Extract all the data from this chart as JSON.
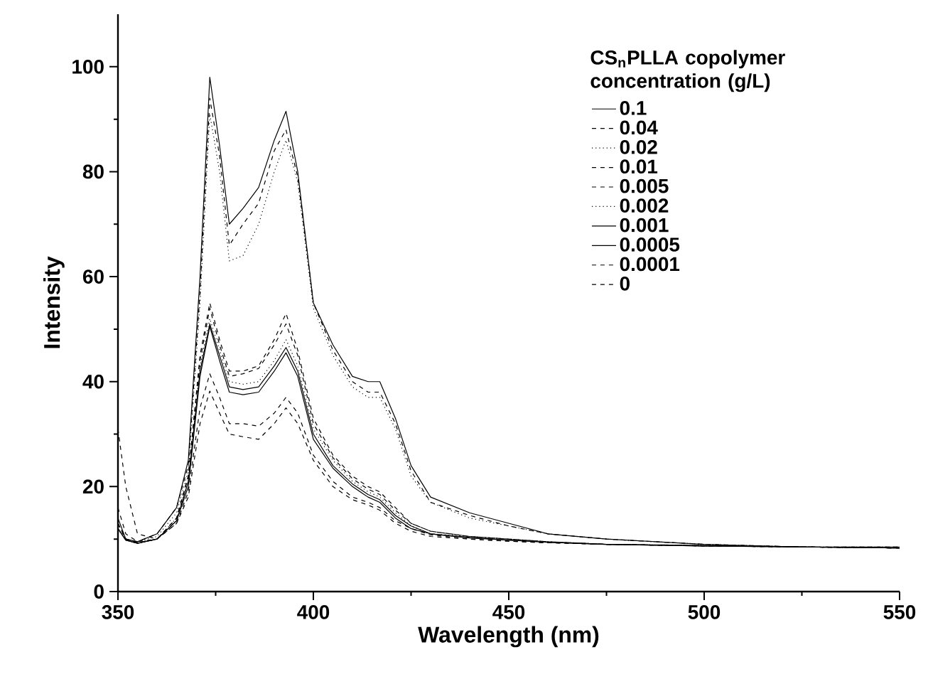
{
  "chart_data": {
    "type": "line",
    "xlabel": "Wavelength (nm)",
    "ylabel": "Intensity",
    "legend_title": "CS$_{n}$PLLA copolymer concentration (g/L)",
    "legend": "top right",
    "xlim": [
      350,
      550
    ],
    "ylim": [
      0,
      110
    ],
    "xticks": [
      350,
      400,
      450,
      500,
      550
    ],
    "yticks": [
      0,
      20,
      40,
      60,
      80,
      100
    ],
    "x": [
      350,
      352,
      355,
      360,
      365,
      368,
      371,
      373.5,
      376,
      378.5,
      382,
      386,
      390,
      393,
      396,
      400,
      405,
      410,
      414,
      417,
      421,
      425,
      430,
      440,
      450,
      460,
      475,
      500,
      525,
      550
    ],
    "series": [
      {
        "name": "0.1",
        "color": "#000000",
        "line_style": "solid",
        "values": [
          14,
          10,
          9.5,
          11,
          16,
          25,
          60,
          98,
          85,
          70,
          73,
          77,
          86,
          91.5,
          80,
          55,
          47,
          41,
          40,
          40,
          33,
          24,
          18,
          15,
          13,
          11,
          10,
          9,
          8.5,
          8.5
        ]
      },
      {
        "name": "0.04",
        "color": "#000000",
        "line_style": "dashed",
        "values": [
          13,
          10,
          9.5,
          11,
          16,
          24,
          57,
          94,
          83,
          66,
          70,
          74,
          84,
          88,
          79,
          55,
          46,
          40,
          38,
          38,
          32,
          23,
          17,
          14.5,
          12.5,
          11,
          10,
          9,
          8.5,
          8.5
        ]
      },
      {
        "name": "0.02",
        "color": "#000000",
        "line_style": "dotted",
        "values": [
          13,
          10,
          9.5,
          10.5,
          15,
          23,
          55,
          91,
          80,
          63,
          64,
          70,
          80,
          86,
          78,
          54,
          45,
          39,
          37,
          37,
          31,
          22,
          17,
          14,
          12.5,
          11,
          10,
          9,
          8.5,
          8.5
        ]
      },
      {
        "name": "0.01",
        "color": "#000000",
        "line_style": "dashed",
        "values": [
          13,
          10,
          9.3,
          10,
          14,
          22,
          45,
          55,
          48,
          42,
          42,
          43,
          48,
          53,
          46,
          33,
          26,
          22,
          20,
          19,
          16,
          13,
          11.5,
          10.5,
          10,
          9.5,
          9,
          8.8,
          8.5,
          8.3
        ]
      },
      {
        "name": "0.005",
        "color": "#000000",
        "line_style": "dashed",
        "values": [
          13,
          10,
          9.3,
          10,
          14,
          22,
          44,
          54,
          47,
          41,
          41.5,
          42.5,
          47,
          51,
          45,
          32,
          25.5,
          21.5,
          19.5,
          18.5,
          15.5,
          13,
          11.5,
          10.5,
          10,
          9.5,
          9,
          8.8,
          8.5,
          8.3
        ]
      },
      {
        "name": "0.002",
        "color": "#000000",
        "line_style": "dotted",
        "values": [
          12,
          9.8,
          9.2,
          10,
          14,
          21,
          43,
          52,
          46,
          40,
          39.5,
          40,
          44,
          48,
          43,
          31,
          25,
          21,
          19,
          18,
          15,
          12.5,
          11,
          10.5,
          10,
          9.5,
          9,
          8.7,
          8.5,
          8.3
        ]
      },
      {
        "name": "0.001",
        "color": "#000000",
        "line_style": "solid",
        "values": [
          12,
          9.8,
          9.2,
          10,
          13.5,
          21,
          42,
          51,
          45,
          39,
          38.5,
          39,
          43,
          46.5,
          42,
          30,
          24,
          20.5,
          18.5,
          17.5,
          14.5,
          12.5,
          11,
          10.3,
          9.8,
          9.4,
          9,
          8.7,
          8.5,
          8.3
        ]
      },
      {
        "name": "0.0005",
        "color": "#000000",
        "line_style": "solid",
        "values": [
          12,
          9.8,
          9.2,
          10,
          13.5,
          20,
          41,
          50.5,
          44,
          38,
          37.5,
          38,
          42,
          45.5,
          41,
          29,
          23.5,
          20,
          18,
          17,
          14,
          12,
          11,
          10.2,
          9.8,
          9.4,
          9,
          8.7,
          8.5,
          8.3
        ]
      },
      {
        "name": "0.0001",
        "color": "#000000",
        "line_style": "dashed",
        "values": [
          31,
          20,
          11,
          10,
          13,
          19,
          35,
          41.5,
          37,
          32,
          32,
          31.5,
          34,
          37,
          34,
          26,
          21,
          18,
          17,
          16,
          13.5,
          12,
          10.8,
          10,
          9.6,
          9.3,
          9,
          8.7,
          8.5,
          8.3
        ]
      },
      {
        "name": "0",
        "color": "#000000",
        "line_style": "dashed",
        "values": [
          16,
          11,
          9.5,
          10,
          13,
          18,
          32,
          38.2,
          34,
          30,
          29.5,
          29,
          32,
          35,
          32,
          25,
          20,
          17.5,
          16.5,
          15.5,
          13,
          11.5,
          10.5,
          10,
          9.6,
          9.3,
          9,
          8.7,
          8.5,
          8.3
        ]
      }
    ]
  }
}
